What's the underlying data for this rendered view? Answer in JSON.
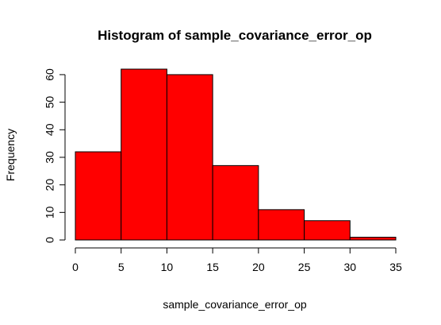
{
  "chart_data": {
    "type": "bar",
    "title": "Histogram of sample_covariance_error_op",
    "xlabel": "sample_covariance_error_op",
    "ylabel": "Frequency",
    "bins": [
      {
        "from": 0,
        "to": 5,
        "count": 32
      },
      {
        "from": 5,
        "to": 10,
        "count": 62
      },
      {
        "from": 10,
        "to": 15,
        "count": 60
      },
      {
        "from": 15,
        "to": 20,
        "count": 27
      },
      {
        "from": 20,
        "to": 25,
        "count": 11
      },
      {
        "from": 25,
        "to": 30,
        "count": 7
      },
      {
        "from": 30,
        "to": 35,
        "count": 1
      }
    ],
    "xlim": [
      0,
      35
    ],
    "ylim": [
      0,
      62
    ],
    "x_ticks": [
      0,
      5,
      10,
      15,
      20,
      25,
      30,
      35
    ],
    "y_ticks": [
      0,
      10,
      20,
      30,
      40,
      50,
      60
    ],
    "bar_color": "#ff0000",
    "grid": false
  }
}
